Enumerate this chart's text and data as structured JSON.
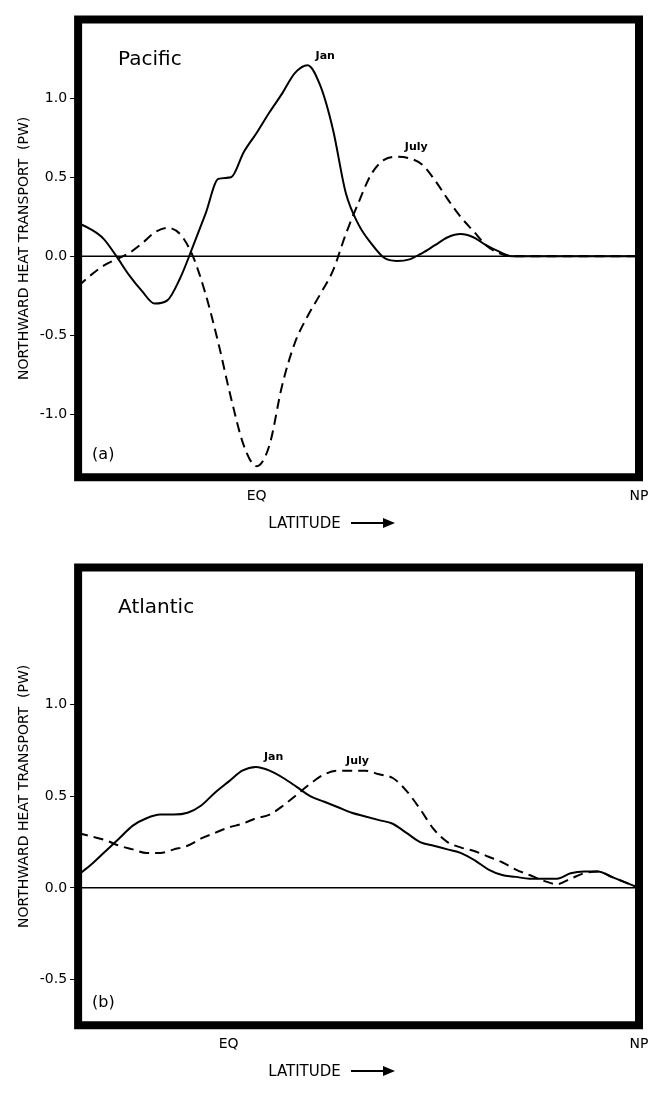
{
  "chart_data": [
    {
      "type": "line",
      "title": "Pacific",
      "xlabel": "LATITUDE",
      "ylabel": "NORTHWARD HEAT TRANSPORT  (PW)",
      "annotations": [
        "(a)"
      ],
      "grid": false,
      "legend": false,
      "marker": "none",
      "categories": [
        null,
        null,
        null,
        null,
        null,
        null,
        null,
        null,
        null,
        null,
        null,
        null,
        null,
        null,
        "EQ",
        null,
        null,
        null,
        null,
        null,
        null,
        null,
        null,
        null,
        null,
        null,
        null,
        null,
        null,
        null,
        null,
        null,
        null,
        null,
        null,
        null,
        null,
        null,
        null,
        null,
        null,
        null,
        null,
        null,
        "NP"
      ],
      "ylim": [
        -1.4,
        1.5
      ],
      "yticks": [
        {
          "value": -1,
          "label": "-1.0"
        },
        {
          "value": -0.5,
          "label": "-0.5"
        },
        {
          "value": 0,
          "label": "0.0"
        },
        {
          "value": 0.5,
          "label": "0.5"
        },
        {
          "value": 1,
          "label": "1.0"
        }
      ],
      "ref_lines": [
        {
          "axis": "y",
          "value": 0,
          "color": "#000000"
        }
      ],
      "series": [
        {
          "name": "Jan",
          "color": "#000000",
          "line_style": "solid",
          "values": [
            0.21,
            0.17,
            0.11,
            0,
            -0.12,
            -0.22,
            -0.3,
            -0.28,
            -0.14,
            0.06,
            0.27,
            0.49,
            0.5,
            0.66,
            0.78,
            0.91,
            1.03,
            1.16,
            1.21,
            1.08,
            0.8,
            0.4,
            0.2,
            0.08,
            -0.01,
            -0.03,
            -0.02,
            0.02,
            0.07,
            0.12,
            0.14,
            0.12,
            0.07,
            0.03,
            0,
            0,
            0,
            0,
            0,
            0,
            0,
            0,
            0,
            0,
            0
          ]
        },
        {
          "name": "July",
          "color": "#000000",
          "line_style": "dashed",
          "values": [
            -0.19,
            -0.12,
            -0.06,
            -0.02,
            0.02,
            0.08,
            0.15,
            0.18,
            0.14,
            0,
            -0.24,
            -0.55,
            -0.9,
            -1.2,
            -1.33,
            -1.2,
            -0.82,
            -0.55,
            -0.38,
            -0.24,
            -0.09,
            0.14,
            0.34,
            0.52,
            0.61,
            0.63,
            0.62,
            0.58,
            0.48,
            0.36,
            0.25,
            0.16,
            0.07,
            0.02,
            0,
            0,
            0,
            0,
            0,
            0,
            0,
            0,
            0,
            0,
            0
          ]
        }
      ]
    },
    {
      "type": "line",
      "title": "Atlantic",
      "xlabel": "LATITUDE",
      "ylabel": "NORTHWARD HEAT TRANSPORT  (PW)",
      "annotations": [
        "(b)"
      ],
      "grid": false,
      "legend": false,
      "marker": "none",
      "categories": [
        null,
        null,
        null,
        null,
        null,
        null,
        null,
        null,
        null,
        null,
        null,
        "EQ",
        null,
        null,
        null,
        null,
        null,
        null,
        null,
        null,
        null,
        null,
        null,
        null,
        null,
        null,
        null,
        null,
        null,
        null,
        null,
        null,
        null,
        null,
        null,
        null,
        null,
        null,
        null,
        null,
        null,
        "NP"
      ],
      "ylim": [
        -0.75,
        1.75
      ],
      "yticks": [
        {
          "value": -0.5,
          "label": "-0.5"
        },
        {
          "value": 0,
          "label": "0.0"
        },
        {
          "value": 0.5,
          "label": "0.5"
        },
        {
          "value": 1,
          "label": "1.0"
        }
      ],
      "ref_lines": [
        {
          "axis": "y",
          "value": 0,
          "color": "#000000"
        }
      ],
      "series": [
        {
          "name": "Jan",
          "color": "#000000",
          "line_style": "solid",
          "values": [
            0.07,
            0.13,
            0.2,
            0.27,
            0.34,
            0.38,
            0.4,
            0.4,
            0.41,
            0.45,
            0.52,
            0.58,
            0.64,
            0.66,
            0.64,
            0.6,
            0.55,
            0.5,
            0.47,
            0.44,
            0.41,
            0.39,
            0.37,
            0.35,
            0.3,
            0.25,
            0.23,
            0.21,
            0.19,
            0.15,
            0.1,
            0.07,
            0.06,
            0.05,
            0.05,
            0.05,
            0.08,
            0.09,
            0.09,
            0.06,
            0.03,
            0
          ]
        },
        {
          "name": "July",
          "color": "#000000",
          "line_style": "dashed",
          "values": [
            0.3,
            0.28,
            0.26,
            0.23,
            0.21,
            0.19,
            0.19,
            0.21,
            0.23,
            0.27,
            0.3,
            0.33,
            0.35,
            0.38,
            0.4,
            0.45,
            0.51,
            0.57,
            0.62,
            0.64,
            0.64,
            0.64,
            0.62,
            0.6,
            0.53,
            0.43,
            0.32,
            0.25,
            0.22,
            0.2,
            0.17,
            0.14,
            0.1,
            0.07,
            0.04,
            0.02,
            0.05,
            0.08,
            0.09,
            0.06,
            0.03,
            0
          ]
        }
      ]
    }
  ]
}
